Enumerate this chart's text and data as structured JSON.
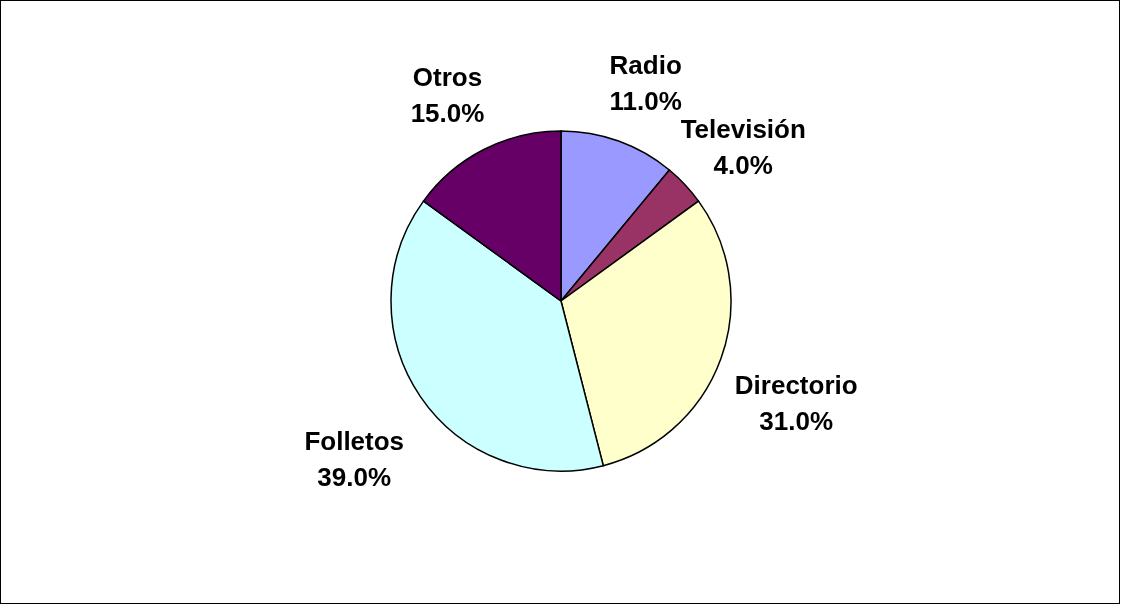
{
  "chart_data": {
    "type": "pie",
    "categories": [
      "Radio",
      "Televisión",
      "Directorio",
      "Folletos",
      "Otros"
    ],
    "values": [
      11,
      4,
      31,
      39,
      15
    ],
    "value_labels": [
      "11.0%",
      "4.0%",
      "31.0%",
      "39.0%",
      "15.0%"
    ],
    "colors": [
      "#9999ff",
      "#993366",
      "#ffffcc",
      "#ccffff",
      "#660066"
    ],
    "legend": false
  }
}
